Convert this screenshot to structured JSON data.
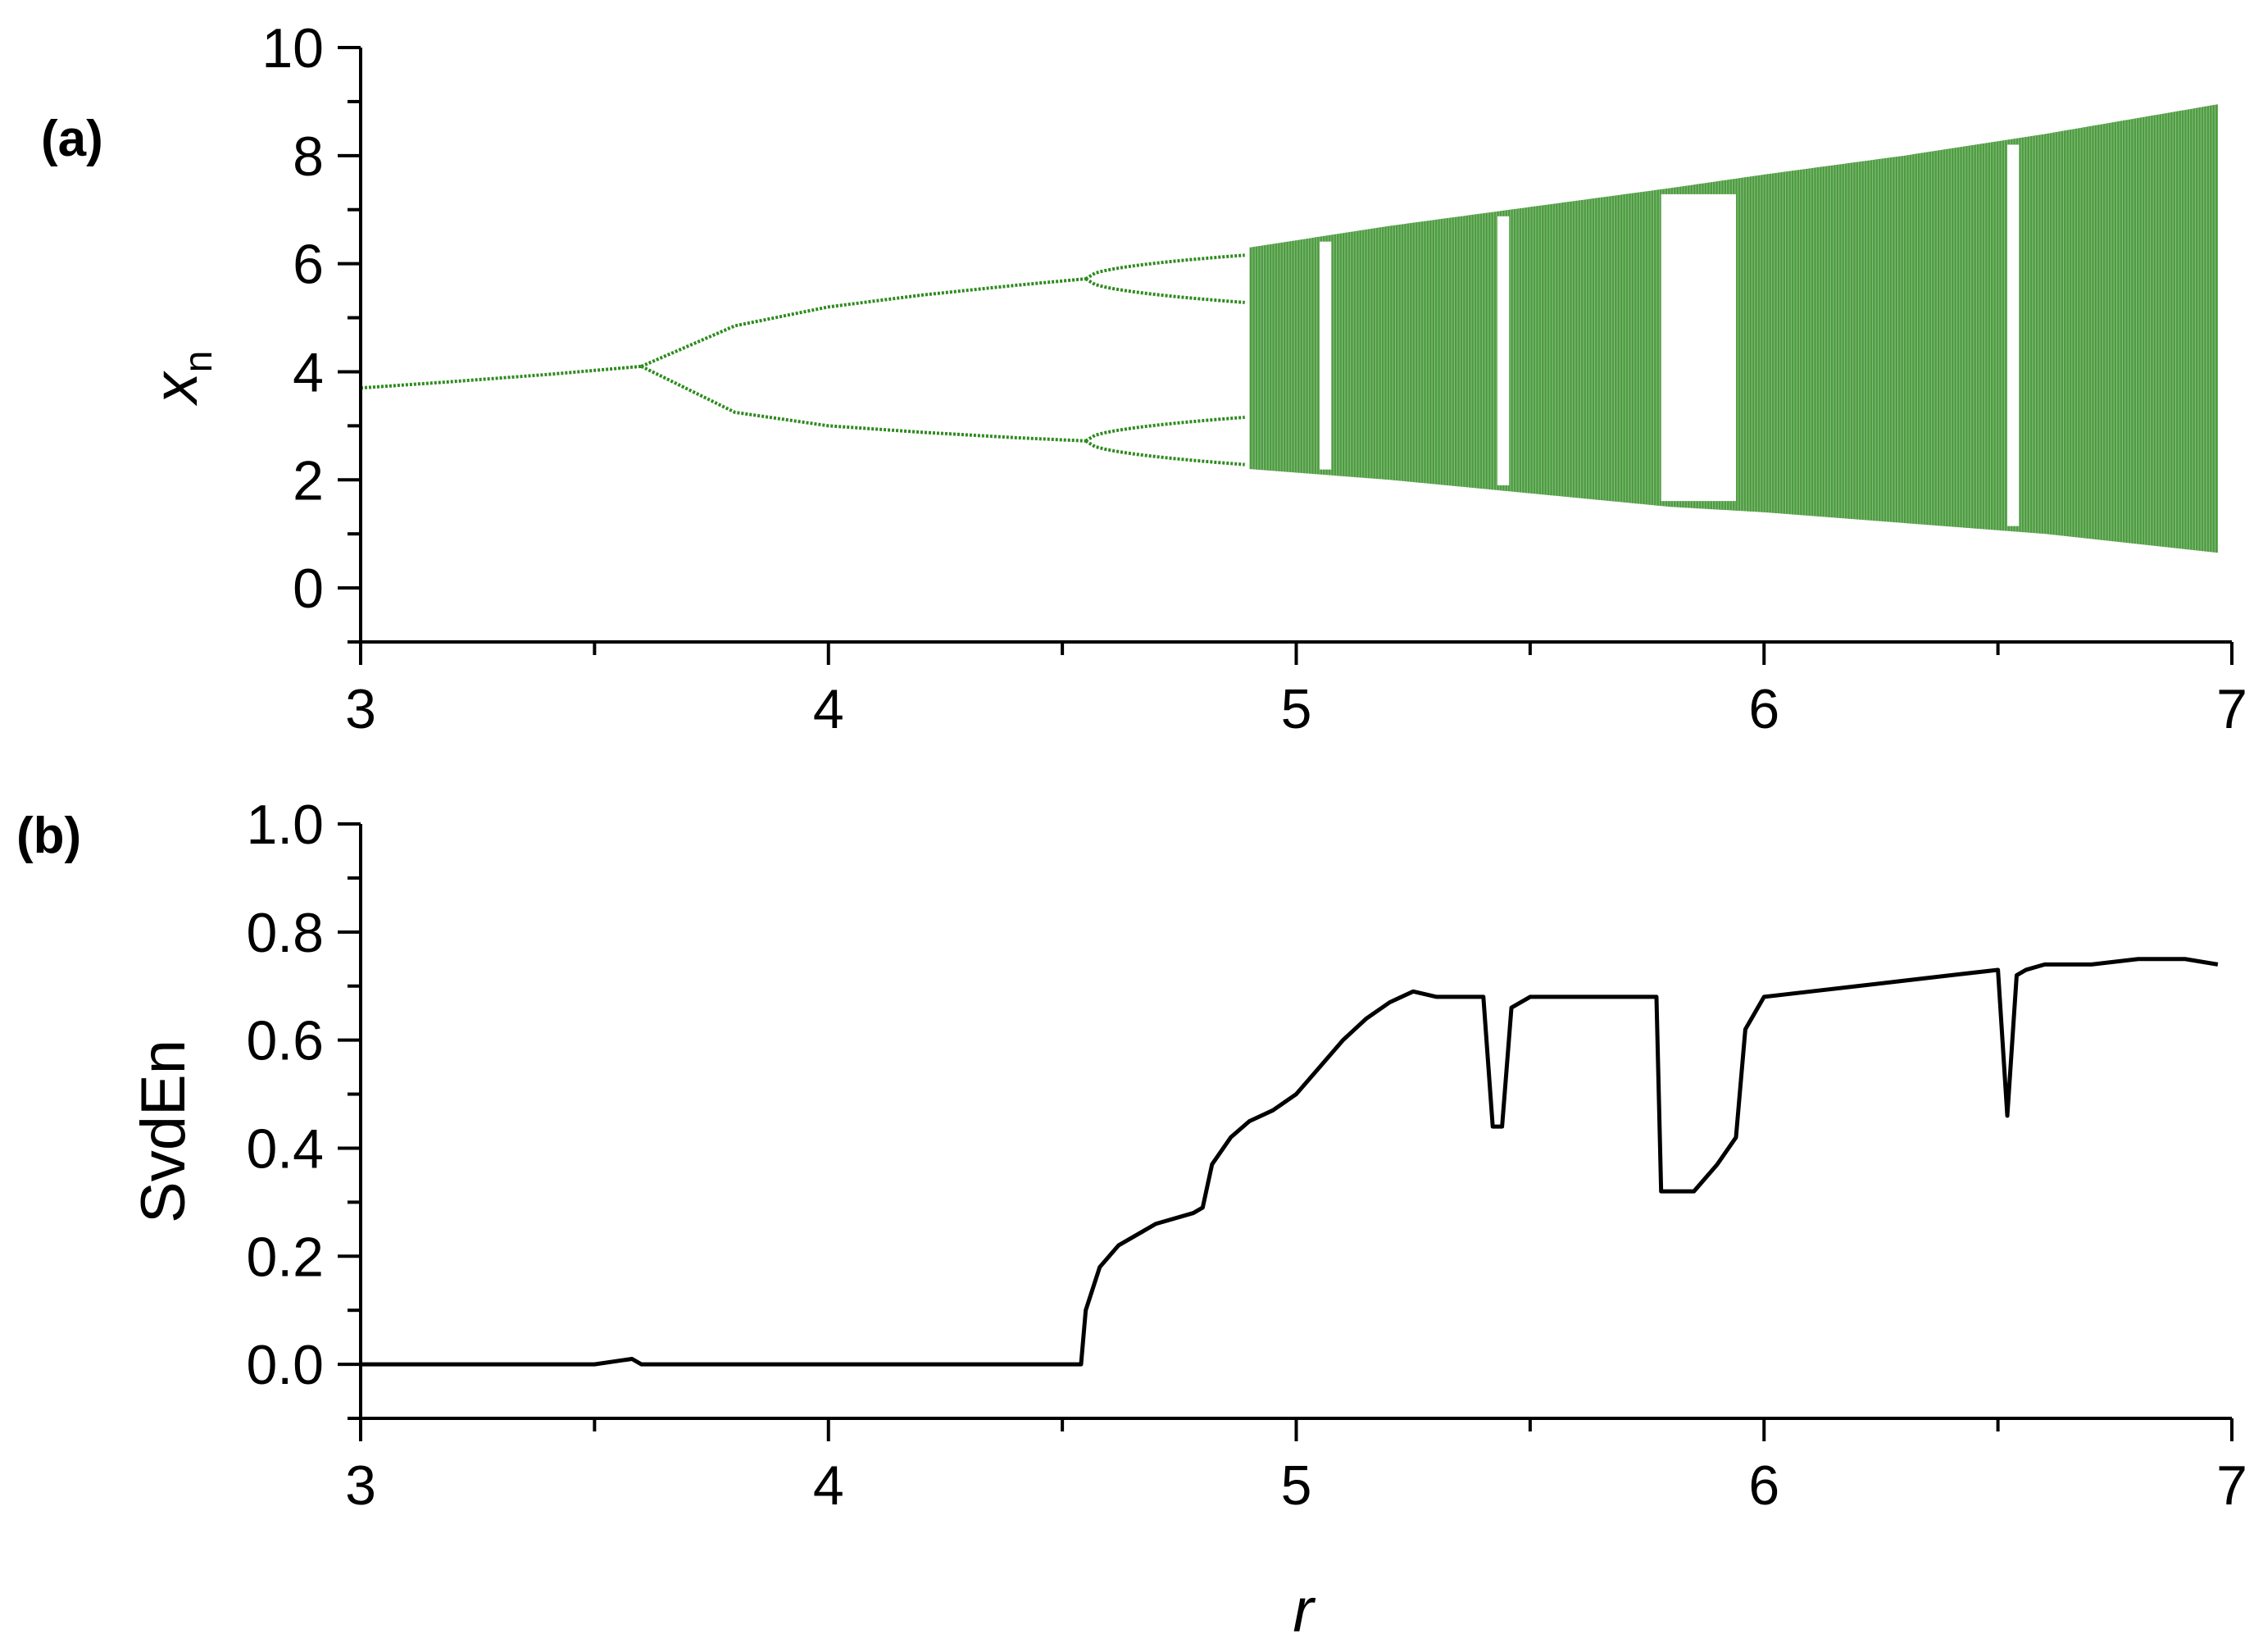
{
  "chart_data": [
    {
      "panel_label": "(a)",
      "type": "scatter",
      "description_kind": "bifurcation diagram",
      "xlabel": "",
      "ylabel": "x",
      "ylabel_subscript": "n",
      "xlim": [
        3,
        7
      ],
      "ylim": [
        -1,
        10
      ],
      "xticks": [
        "3",
        "4",
        "5",
        "6",
        "7"
      ],
      "yticks": [
        "0",
        "2",
        "4",
        "6",
        "8",
        "10"
      ],
      "grid": false,
      "color": "#2e8b1f",
      "series": [
        {
          "segment": "fixed point",
          "x": [
            3.0,
            3.2,
            3.4,
            3.6
          ],
          "y": [
            3.7,
            3.82,
            3.95,
            4.1
          ]
        },
        {
          "segment": "period-2 upper",
          "x": [
            3.6,
            3.8,
            4.0,
            4.2,
            4.4,
            4.55
          ],
          "y": [
            4.1,
            4.85,
            5.2,
            5.42,
            5.6,
            5.72
          ]
        },
        {
          "segment": "period-2 lower",
          "x": [
            3.6,
            3.8,
            4.0,
            4.2,
            4.4,
            4.55
          ],
          "y": [
            4.1,
            3.25,
            3.0,
            2.88,
            2.78,
            2.72
          ]
        },
        {
          "segment": "chaotic band upper envelope",
          "x": [
            4.9,
            5.2,
            5.5,
            5.8,
            6.0,
            6.3,
            6.6,
            6.97
          ],
          "y": [
            6.3,
            6.7,
            7.05,
            7.4,
            7.65,
            8.0,
            8.4,
            8.95
          ]
        },
        {
          "segment": "chaotic band lower envelope",
          "x": [
            4.9,
            5.2,
            5.5,
            5.8,
            6.0,
            6.3,
            6.6,
            6.97
          ],
          "y": [
            2.2,
            2.0,
            1.75,
            1.5,
            1.4,
            1.2,
            1.0,
            0.65
          ]
        }
      ],
      "periodic_windows_r": [
        5.05,
        5.43,
        5.78,
        6.52
      ]
    },
    {
      "panel_label": "(b)",
      "type": "line",
      "xlabel": "r",
      "ylabel": "SvdEn",
      "xlim": [
        3,
        7
      ],
      "ylim": [
        -0.1,
        1.0
      ],
      "xticks": [
        "3",
        "4",
        "5",
        "6",
        "7"
      ],
      "yticks": [
        "0.0",
        "0.2",
        "0.4",
        "0.6",
        "0.8",
        "1.0"
      ],
      "grid": false,
      "color": "#000000",
      "x": [
        3.0,
        3.5,
        3.58,
        3.6,
        4.0,
        4.54,
        4.55,
        4.58,
        4.62,
        4.7,
        4.78,
        4.8,
        4.82,
        4.86,
        4.9,
        4.95,
        5.0,
        5.05,
        5.1,
        5.15,
        5.2,
        5.25,
        5.3,
        5.35,
        5.4,
        5.42,
        5.44,
        5.46,
        5.5,
        5.6,
        5.7,
        5.77,
        5.78,
        5.85,
        5.9,
        5.94,
        5.96,
        6.0,
        6.1,
        6.2,
        6.3,
        6.4,
        6.5,
        6.52,
        6.54,
        6.56,
        6.6,
        6.7,
        6.8,
        6.9,
        6.97
      ],
      "y": [
        0.0,
        0.0,
        0.01,
        0.0,
        0.0,
        0.0,
        0.1,
        0.18,
        0.22,
        0.26,
        0.28,
        0.29,
        0.37,
        0.42,
        0.45,
        0.47,
        0.5,
        0.55,
        0.6,
        0.64,
        0.67,
        0.69,
        0.68,
        0.68,
        0.68,
        0.44,
        0.44,
        0.66,
        0.68,
        0.68,
        0.68,
        0.68,
        0.32,
        0.32,
        0.37,
        0.42,
        0.62,
        0.68,
        0.69,
        0.7,
        0.71,
        0.72,
        0.73,
        0.46,
        0.72,
        0.73,
        0.74,
        0.74,
        0.75,
        0.75,
        0.74
      ]
    }
  ]
}
